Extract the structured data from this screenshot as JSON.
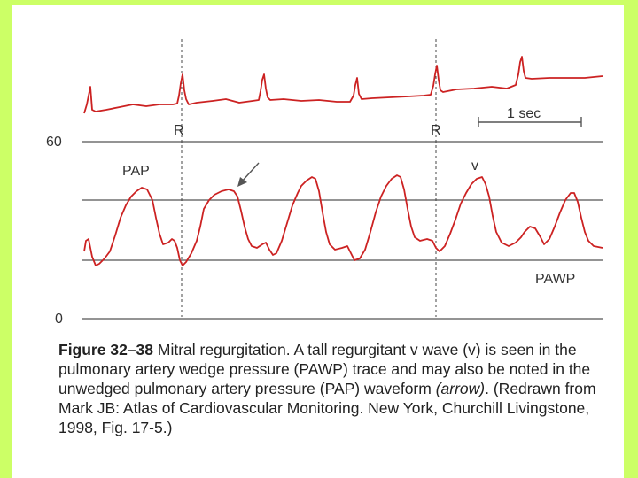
{
  "figure": {
    "labels": {
      "y_top": "60",
      "y_bottom": "0",
      "r_marker_1": "R",
      "r_marker_2": "R",
      "scale_bar": "1 sec",
      "pap": "PAP",
      "v_wave": "v",
      "pawp": "PAWP"
    },
    "colors": {
      "background": "#ccff66",
      "trace": "#cc2222",
      "gridline": "#555555",
      "text": "#333333"
    }
  },
  "caption": {
    "figure_number": "Figure 32–38",
    "text_1": " Mitral regurgitation. A tall regurgitant v wave (v) is seen in the pulmonary artery wedge pressure (PAWP) trace and may also be noted in the unwedged pulmonary artery pressure (PAP) waveform ",
    "italic": "(arrow)",
    "text_2": ". (Redrawn from Mark JB: Atlas of Cardiovascular Monitoring. New York, Churchill Livingstone, 1998, Fig. 17-5.)"
  }
}
